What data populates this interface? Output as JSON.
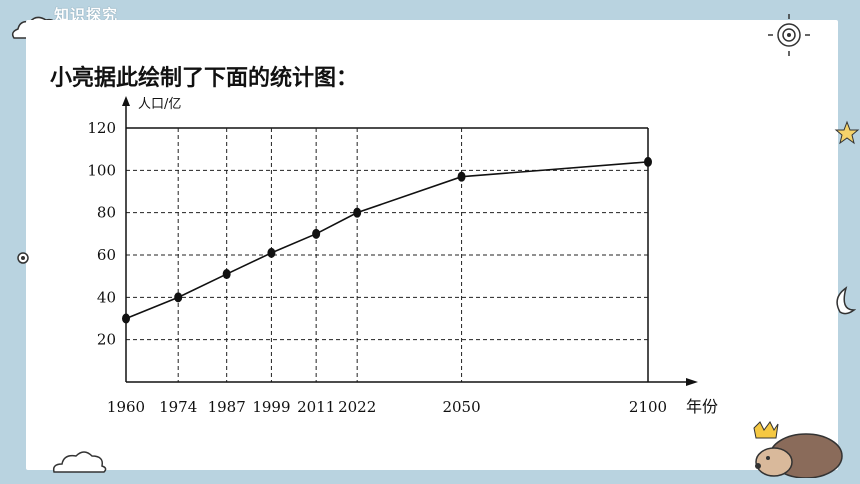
{
  "header": {
    "label": "知识探究"
  },
  "title": "小亮据此绘制了下面的统计图：",
  "chart_data": {
    "type": "line",
    "x": [
      "1960",
      "1974",
      "1987",
      "1999",
      "2011",
      "2022",
      "2050",
      "2100"
    ],
    "x_numeric": [
      1960,
      1974,
      1987,
      1999,
      2011,
      2022,
      2050,
      2100
    ],
    "values": [
      30,
      40,
      51,
      61,
      70,
      80,
      97,
      104
    ],
    "yticks": [
      20,
      40,
      60,
      80,
      100,
      120
    ],
    "ylim": [
      0,
      120
    ],
    "ylabel": "人口/亿",
    "xlabel": "年份",
    "grid": true,
    "colors": {
      "line": "#111111",
      "grid": "#222222"
    }
  }
}
